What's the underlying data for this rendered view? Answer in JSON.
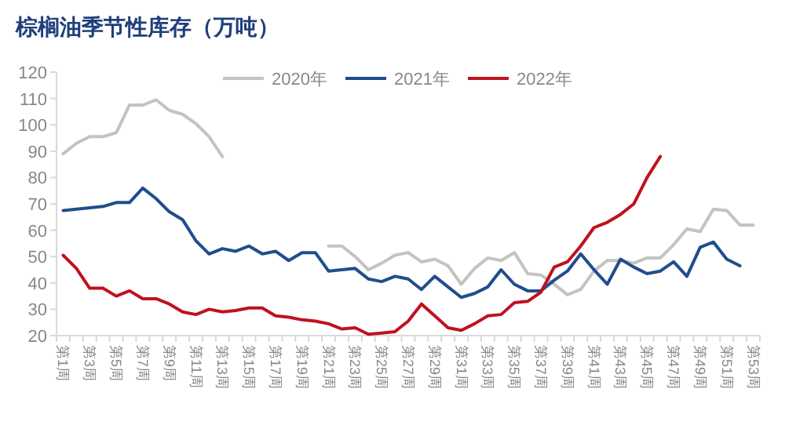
{
  "chart_data": {
    "type": "line",
    "title": "棕榈油季节性库存（万吨）",
    "categories": [
      "第1周",
      null,
      "第3周",
      null,
      "第5周",
      null,
      "第7周",
      null,
      "第9周",
      null,
      "第11周",
      null,
      "第13周",
      null,
      "第15周",
      null,
      "第17周",
      null,
      "第19周",
      null,
      "第21周",
      null,
      "第23周",
      null,
      "第25周",
      null,
      "第27周",
      null,
      "第29周",
      null,
      "第31周",
      null,
      "第33周",
      null,
      "第35周",
      null,
      "第37周",
      null,
      "第39周",
      null,
      "第41周",
      null,
      "第43周",
      null,
      "第45周",
      null,
      "第47周",
      null,
      "第49周",
      null,
      "第51周",
      null,
      "第53周"
    ],
    "series": [
      {
        "name": "2020年",
        "color": "#c3c3c3",
        "values": [
          89,
          93,
          95.5,
          95.5,
          97,
          107.5,
          107.5,
          109.5,
          105.5,
          104,
          100.5,
          95.5,
          88,
          null,
          null,
          null,
          null,
          null,
          null,
          null,
          54,
          54,
          50,
          45,
          47.5,
          50.5,
          51.5,
          48,
          49,
          46.5,
          39.5,
          45.5,
          49.5,
          48.5,
          51.5,
          43.5,
          43,
          39.5,
          35.5,
          37.5,
          44.5,
          48.5,
          48.5,
          47.5,
          49.5,
          49.5,
          54.5,
          60.5,
          59.5,
          68,
          67.5,
          62,
          62
        ]
      },
      {
        "name": "2021年",
        "color": "#1f4e8c",
        "values": [
          67.5,
          68,
          68.5,
          69,
          70.5,
          70.5,
          76,
          72,
          67,
          64,
          56,
          51,
          53,
          52,
          54,
          51,
          52,
          48.5,
          51.5,
          51.5,
          44.5,
          45,
          45.5,
          41.5,
          40.5,
          42.5,
          41.5,
          37.5,
          42.5,
          38.5,
          34.5,
          36,
          38.5,
          45,
          39.5,
          37,
          37,
          41,
          44.5,
          51,
          45,
          39.5,
          49,
          46,
          43.5,
          44.5,
          48,
          42.5,
          53.5,
          55.5,
          49,
          46.5,
          null
        ]
      },
      {
        "name": "2022年",
        "color": "#c0111f",
        "values": [
          50.5,
          45.5,
          38,
          38,
          35,
          37,
          34,
          34,
          32,
          29,
          28,
          30,
          29,
          29.5,
          30.5,
          30.5,
          27.5,
          27,
          26,
          25.5,
          24.5,
          22.5,
          23,
          20.5,
          21,
          21.5,
          25.5,
          32,
          27.5,
          23,
          22,
          24.5,
          27.5,
          28,
          32.5,
          33,
          36.5,
          46,
          48,
          54,
          61,
          63,
          66,
          70,
          80,
          88,
          null,
          null,
          null,
          null,
          null,
          null,
          null
        ]
      }
    ],
    "ylim": [
      20,
      120
    ],
    "yticks": [
      20,
      30,
      40,
      50,
      60,
      70,
      80,
      90,
      100,
      110,
      120
    ],
    "legend": "top",
    "grid": false,
    "marker": "none",
    "line_style": "solid"
  }
}
